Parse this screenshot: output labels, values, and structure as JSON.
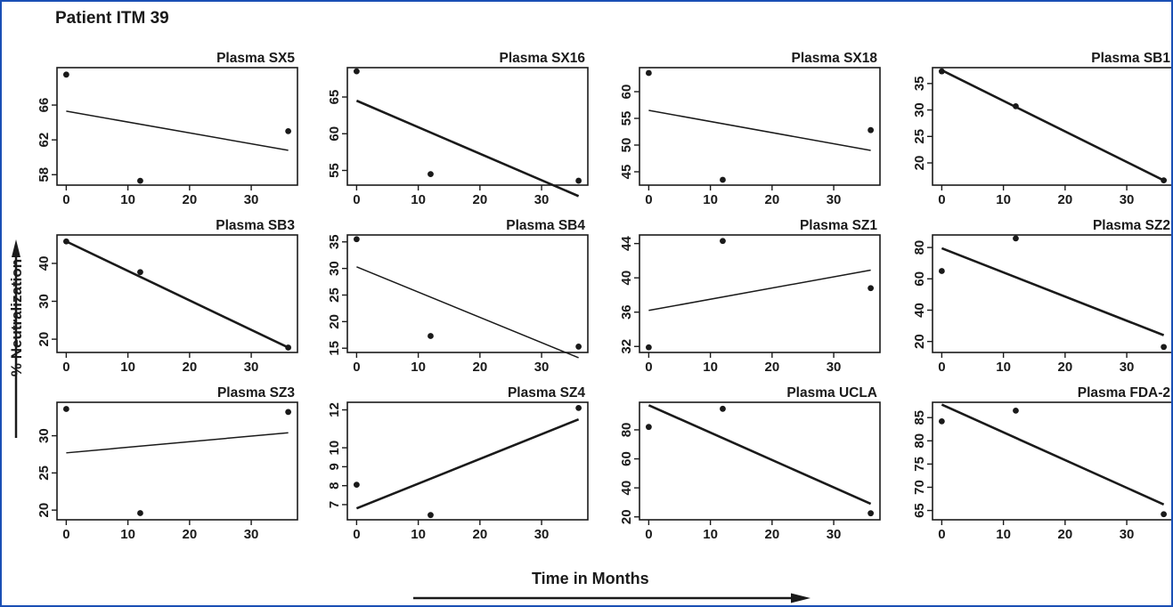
{
  "figure": {
    "title": "Patient ITM 39",
    "ylabel": "% Neutralization",
    "xlabel": "Time in Months",
    "border_color": "#1a4fb5"
  },
  "chart_data": [
    {
      "type": "scatter",
      "title": "Plasma SX5",
      "x": [
        0,
        12,
        36
      ],
      "y": [
        69.5,
        57.3,
        63
      ],
      "fit": [
        65.3,
        60.8
      ],
      "xticks": [
        0,
        10,
        20,
        30
      ],
      "yticks": [
        58,
        62,
        66
      ],
      "ylim": [
        56.8,
        70.3
      ],
      "line_weight": "thin"
    },
    {
      "type": "scatter",
      "title": "Plasma SX16",
      "x": [
        0,
        12,
        36
      ],
      "y": [
        68.5,
        54.5,
        53.6
      ],
      "fit": [
        64.5,
        51.5
      ],
      "xticks": [
        0,
        10,
        20,
        30
      ],
      "yticks": [
        55,
        60,
        65
      ],
      "ylim": [
        53,
        69
      ],
      "line_weight": "bold"
    },
    {
      "type": "scatter",
      "title": "Plasma SX18",
      "x": [
        0,
        12,
        36
      ],
      "y": [
        63.5,
        43.5,
        52.8
      ],
      "fit": [
        56.5,
        49
      ],
      "xticks": [
        0,
        10,
        20,
        30
      ],
      "yticks": [
        45,
        50,
        55,
        60
      ],
      "ylim": [
        42.5,
        64.5
      ],
      "line_weight": "thin"
    },
    {
      "type": "scatter",
      "title": "Plasma SB1",
      "x": [
        0,
        12,
        36
      ],
      "y": [
        37.3,
        30.7,
        16.7
      ],
      "fit": [
        37.5,
        16.7
      ],
      "xticks": [
        0,
        10,
        20,
        30
      ],
      "yticks": [
        20,
        25,
        30,
        35
      ],
      "ylim": [
        15.8,
        38
      ],
      "line_weight": "bold"
    },
    {
      "type": "scatter",
      "title": "Plasma SB3",
      "x": [
        0,
        12,
        36
      ],
      "y": [
        45.8,
        37.7,
        17.8
      ],
      "fit": [
        45.8,
        17.8
      ],
      "xticks": [
        0,
        10,
        20,
        30
      ],
      "yticks": [
        20,
        30,
        40
      ],
      "ylim": [
        16.5,
        47.5
      ],
      "line_weight": "bold"
    },
    {
      "type": "scatter",
      "title": "Plasma SB4",
      "x": [
        0,
        12,
        36
      ],
      "y": [
        35.5,
        17.3,
        15.3
      ],
      "fit": [
        30.3,
        13.2
      ],
      "xticks": [
        0,
        10,
        20,
        30
      ],
      "yticks": [
        15,
        20,
        25,
        30,
        35
      ],
      "ylim": [
        14.2,
        36.3
      ],
      "line_weight": "thin"
    },
    {
      "type": "scatter",
      "title": "Plasma SZ1",
      "x": [
        0,
        12,
        36
      ],
      "y": [
        31.9,
        44.3,
        38.8
      ],
      "fit": [
        36.2,
        40.9
      ],
      "xticks": [
        0,
        10,
        20,
        30
      ],
      "yticks": [
        32,
        36,
        40,
        44
      ],
      "ylim": [
        31.3,
        45
      ],
      "line_weight": "thin"
    },
    {
      "type": "scatter",
      "title": "Plasma SZ2",
      "x": [
        0,
        12,
        36
      ],
      "y": [
        65,
        85.8,
        16.5
      ],
      "fit": [
        79.5,
        24
      ],
      "xticks": [
        0,
        10,
        20,
        30
      ],
      "yticks": [
        20,
        40,
        60,
        80
      ],
      "ylim": [
        13,
        88
      ],
      "line_weight": "bold"
    },
    {
      "type": "scatter",
      "title": "Plasma SZ3",
      "x": [
        0,
        12,
        36
      ],
      "y": [
        33.6,
        19.6,
        33.2
      ],
      "fit": [
        27.7,
        30.4
      ],
      "xticks": [
        0,
        10,
        20,
        30
      ],
      "yticks": [
        20,
        25,
        30
      ],
      "ylim": [
        18.7,
        34.5
      ],
      "line_weight": "thin"
    },
    {
      "type": "scatter",
      "title": "Plasma SZ4",
      "x": [
        0,
        12,
        36
      ],
      "y": [
        8.05,
        6.45,
        12.1
      ],
      "fit": [
        6.8,
        11.5
      ],
      "xticks": [
        0,
        10,
        20,
        30
      ],
      "yticks": [
        7,
        8,
        9,
        10,
        12
      ],
      "ytick_labels": [
        "7",
        "8",
        "9",
        "10",
        "12"
      ],
      "ylim": [
        6.2,
        12.4
      ],
      "line_weight": "bold"
    },
    {
      "type": "scatter",
      "title": "Plasma UCLA",
      "x": [
        0,
        12,
        36
      ],
      "y": [
        82,
        94.5,
        22.5
      ],
      "fit": [
        97,
        29
      ],
      "xticks": [
        0,
        10,
        20,
        30
      ],
      "yticks": [
        20,
        40,
        60,
        80
      ],
      "ylim": [
        18,
        99
      ],
      "line_weight": "bold"
    },
    {
      "type": "scatter",
      "title": "Plasma FDA-2",
      "x": [
        0,
        12,
        36
      ],
      "y": [
        84.2,
        86.5,
        64.2
      ],
      "fit": [
        87.8,
        66.3
      ],
      "xticks": [
        0,
        10,
        20,
        30
      ],
      "yticks": [
        65,
        70,
        75,
        80,
        85
      ],
      "ytick_labels": [
        "65",
        "70",
        "75",
        "80",
        "85"
      ],
      "ylim": [
        63,
        88.3
      ],
      "line_weight": "bold"
    }
  ]
}
